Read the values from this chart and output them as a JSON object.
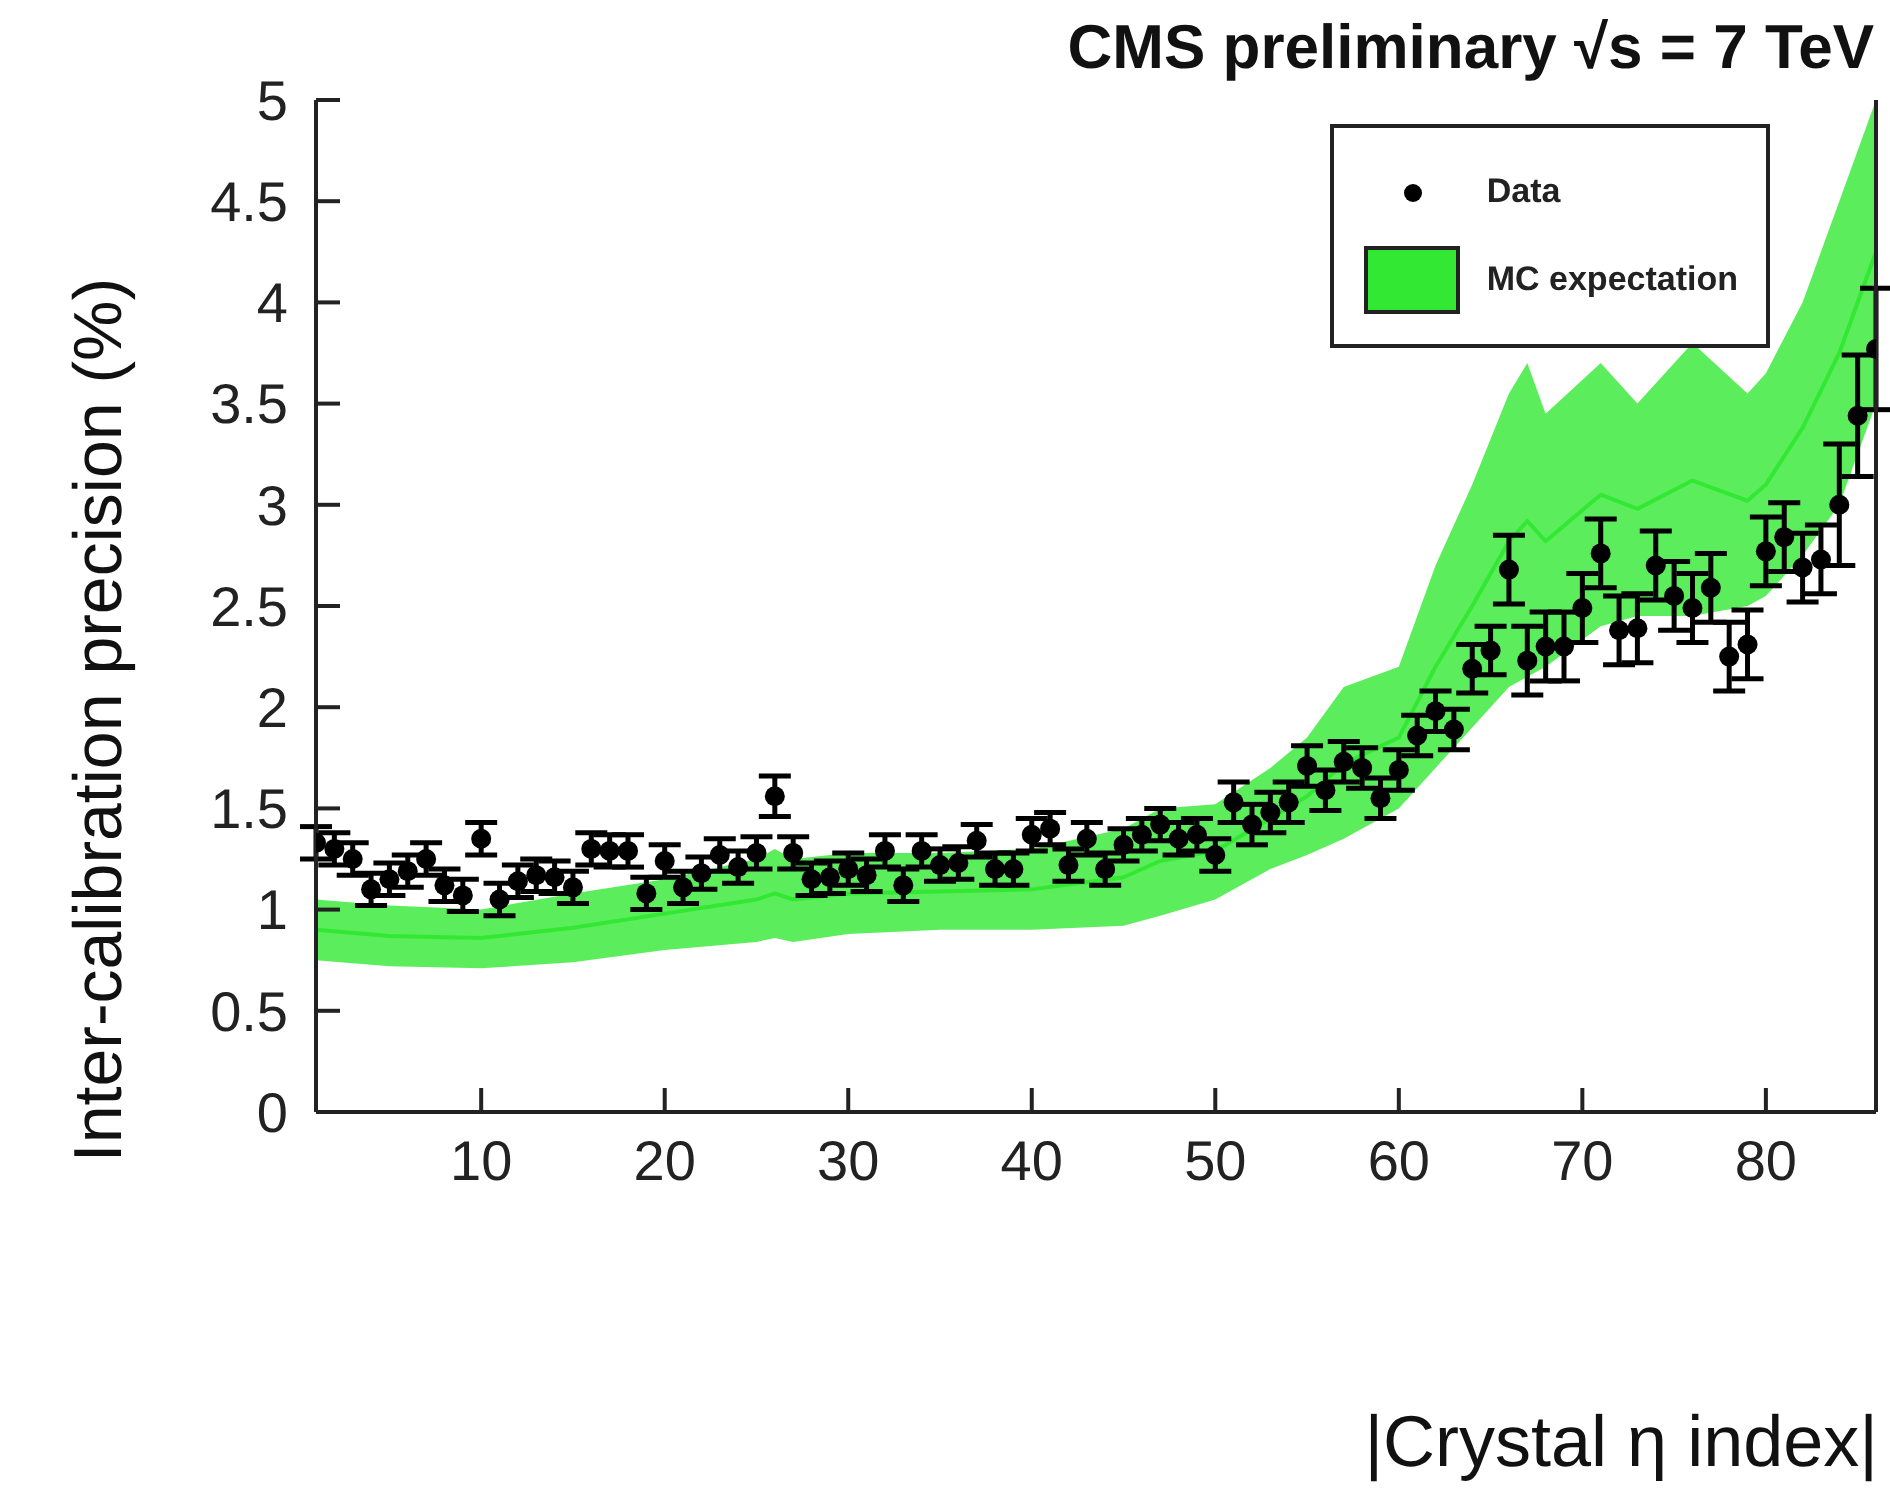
{
  "chart_data": {
    "type": "scatter",
    "title": "CMS preliminary √s = 7 TeV",
    "xlabel": "|Crystal η index|",
    "ylabel": "Inter-calibration precision (%)",
    "xlim": [
      1,
      86
    ],
    "xticks": [
      10,
      20,
      30,
      40,
      50,
      60,
      70,
      80
    ],
    "ylim": [
      0,
      5
    ],
    "yticks": [
      0,
      0.5,
      1,
      1.5,
      2,
      2.5,
      3,
      3.5,
      4,
      4.5,
      5
    ],
    "grid": false,
    "legend": "top right",
    "series": [
      {
        "name": "MC expectation",
        "type": "line",
        "color": "#33e833",
        "x": [
          1,
          5,
          10,
          15,
          20,
          25,
          26,
          27,
          30,
          35,
          40,
          45,
          47,
          50,
          53,
          55,
          57,
          60,
          62,
          64,
          66,
          67,
          68,
          71,
          73,
          76,
          79,
          80,
          82,
          84,
          86
        ],
        "values": [
          0.9,
          0.87,
          0.86,
          0.91,
          0.98,
          1.05,
          1.08,
          1.05,
          1.08,
          1.09,
          1.1,
          1.16,
          1.24,
          1.29,
          1.45,
          1.56,
          1.72,
          1.85,
          2.2,
          2.5,
          2.82,
          2.92,
          2.82,
          3.05,
          2.98,
          3.12,
          3.02,
          3.1,
          3.38,
          3.75,
          4.25
        ],
        "lower": [
          0.75,
          0.72,
          0.71,
          0.74,
          0.8,
          0.84,
          0.86,
          0.84,
          0.88,
          0.9,
          0.9,
          0.92,
          0.97,
          1.05,
          1.2,
          1.27,
          1.35,
          1.5,
          1.7,
          1.9,
          2.1,
          2.15,
          2.2,
          2.4,
          2.45,
          2.45,
          2.5,
          2.55,
          2.75,
          3.0,
          3.5
        ],
        "upper": [
          1.05,
          1.02,
          1.0,
          1.08,
          1.15,
          1.25,
          1.3,
          1.25,
          1.28,
          1.28,
          1.3,
          1.4,
          1.5,
          1.52,
          1.7,
          1.85,
          2.1,
          2.2,
          2.7,
          3.1,
          3.55,
          3.7,
          3.45,
          3.7,
          3.5,
          3.8,
          3.55,
          3.65,
          4.0,
          4.5,
          5.0
        ]
      },
      {
        "name": "Data",
        "marker": "circle",
        "color": "#000000",
        "x": [
          1,
          2,
          3,
          4,
          5,
          6,
          7,
          8,
          9,
          10,
          11,
          12,
          13,
          14,
          15,
          16,
          17,
          18,
          19,
          20,
          21,
          22,
          23,
          24,
          25,
          26,
          27,
          28,
          29,
          30,
          31,
          32,
          33,
          34,
          35,
          36,
          37,
          38,
          39,
          40,
          41,
          42,
          43,
          44,
          45,
          46,
          47,
          48,
          49,
          50,
          51,
          52,
          53,
          54,
          55,
          56,
          57,
          58,
          59,
          60,
          61,
          62,
          63,
          64,
          65,
          66,
          67,
          68,
          69,
          70,
          71,
          72,
          73,
          74,
          75,
          76,
          77,
          78,
          79,
          80,
          81,
          82,
          83,
          84,
          85,
          86
        ],
        "values": [
          1.33,
          1.3,
          1.25,
          1.1,
          1.15,
          1.19,
          1.25,
          1.12,
          1.07,
          1.35,
          1.05,
          1.14,
          1.17,
          1.16,
          1.11,
          1.3,
          1.29,
          1.29,
          1.08,
          1.24,
          1.11,
          1.18,
          1.27,
          1.21,
          1.28,
          1.56,
          1.28,
          1.15,
          1.16,
          1.2,
          1.17,
          1.29,
          1.12,
          1.29,
          1.22,
          1.23,
          1.34,
          1.2,
          1.2,
          1.37,
          1.4,
          1.22,
          1.35,
          1.2,
          1.32,
          1.37,
          1.42,
          1.35,
          1.37,
          1.27,
          1.53,
          1.42,
          1.48,
          1.53,
          1.71,
          1.59,
          1.73,
          1.7,
          1.55,
          1.69,
          1.86,
          1.98,
          1.89,
          2.19,
          2.28,
          2.68,
          2.23,
          2.3,
          2.3,
          2.49,
          2.76,
          2.38,
          2.39,
          2.7,
          2.55,
          2.49,
          2.59,
          2.25,
          2.31,
          2.77,
          2.84,
          2.69,
          2.73,
          3.0,
          3.44,
          3.77
        ],
        "errors": [
          0.08,
          0.08,
          0.08,
          0.08,
          0.08,
          0.08,
          0.08,
          0.08,
          0.08,
          0.08,
          0.08,
          0.08,
          0.08,
          0.08,
          0.08,
          0.08,
          0.08,
          0.08,
          0.08,
          0.08,
          0.08,
          0.08,
          0.08,
          0.08,
          0.08,
          0.1,
          0.08,
          0.08,
          0.08,
          0.08,
          0.08,
          0.08,
          0.08,
          0.08,
          0.08,
          0.08,
          0.08,
          0.08,
          0.08,
          0.08,
          0.08,
          0.08,
          0.08,
          0.08,
          0.08,
          0.08,
          0.08,
          0.08,
          0.08,
          0.08,
          0.1,
          0.1,
          0.1,
          0.1,
          0.1,
          0.1,
          0.1,
          0.1,
          0.1,
          0.1,
          0.1,
          0.1,
          0.1,
          0.12,
          0.12,
          0.17,
          0.17,
          0.17,
          0.17,
          0.17,
          0.17,
          0.17,
          0.17,
          0.17,
          0.17,
          0.17,
          0.17,
          0.17,
          0.17,
          0.17,
          0.17,
          0.17,
          0.17,
          0.3,
          0.3,
          0.3
        ]
      }
    ]
  }
}
